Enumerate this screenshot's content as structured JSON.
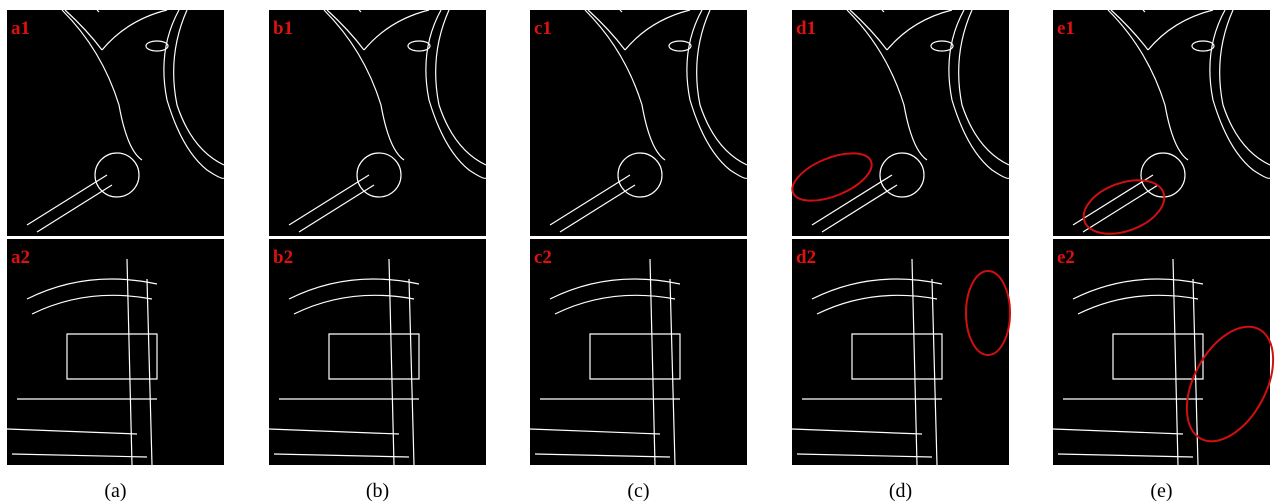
{
  "columns": [
    {
      "top_label": "a1",
      "bottom_label": "a2",
      "caption": "(a)"
    },
    {
      "top_label": "b1",
      "bottom_label": "b2",
      "caption": "(b)"
    },
    {
      "top_label": "c1",
      "bottom_label": "c2",
      "caption": "(c)"
    },
    {
      "top_label": "d1",
      "bottom_label": "d2",
      "caption": "(d)"
    },
    {
      "top_label": "e1",
      "bottom_label": "e2",
      "caption": "(e)"
    }
  ]
}
